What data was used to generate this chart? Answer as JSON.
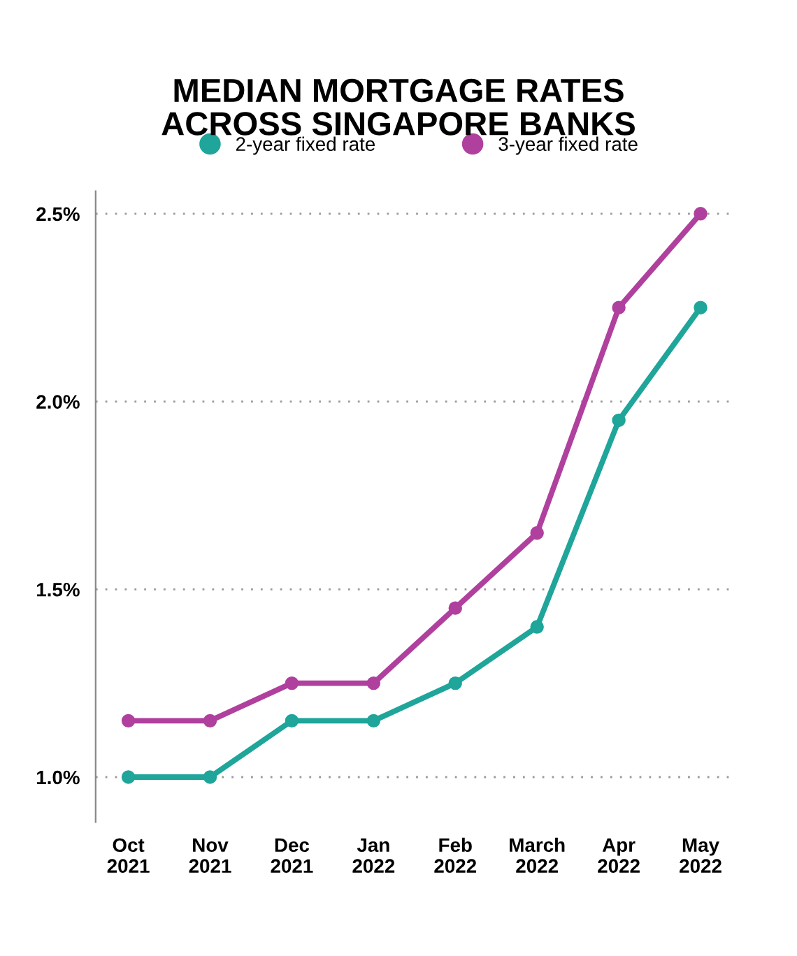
{
  "chart_data": {
    "type": "line",
    "title": "MEDIAN MORTGAGE RATES\nACROSS SINGAPORE BANKS",
    "categories": [
      "Oct\n2021",
      "Nov\n2021",
      "Dec\n2021",
      "Jan\n2022",
      "Feb\n2022",
      "March\n2022",
      "Apr\n2022",
      "May\n2022"
    ],
    "series": [
      {
        "name": "2-year fixed rate",
        "color": "#1fa59a",
        "values": [
          1.0,
          1.0,
          1.15,
          1.15,
          1.25,
          1.4,
          1.95,
          2.25
        ]
      },
      {
        "name": "3-year fixed rate",
        "color": "#b0409e",
        "values": [
          1.15,
          1.15,
          1.25,
          1.25,
          1.45,
          1.65,
          2.25,
          2.5
        ]
      }
    ],
    "ylim": [
      0.88,
      2.56
    ],
    "yticks": [
      {
        "value": 1.0,
        "label": "1.0%"
      },
      {
        "value": 1.5,
        "label": "1.5%"
      },
      {
        "value": 2.0,
        "label": "2.0%"
      },
      {
        "value": 2.5,
        "label": "2.5%"
      }
    ],
    "grid": "y",
    "legend": "top",
    "marker": "circle",
    "line_style": "solid"
  }
}
